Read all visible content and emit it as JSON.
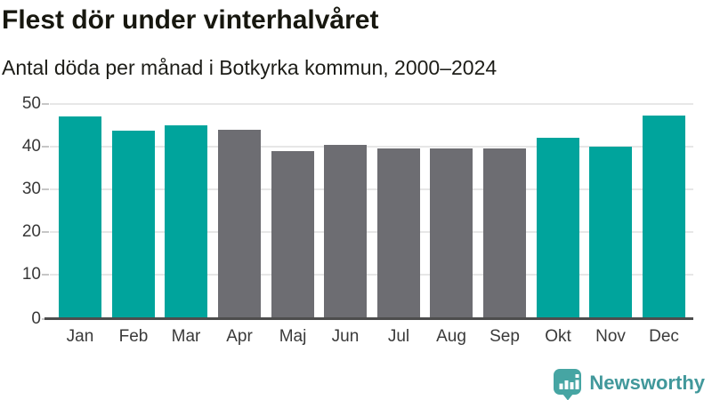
{
  "chart_data": {
    "type": "bar",
    "title": "Flest dör under vinterhalvåret",
    "subtitle": "Antal döda per månad i Botkyrka kommun, 2000–2024",
    "categories": [
      "Jan",
      "Feb",
      "Mar",
      "Apr",
      "Maj",
      "Jun",
      "Jul",
      "Aug",
      "Sep",
      "Okt",
      "Nov",
      "Dec"
    ],
    "values": [
      46.9,
      43.6,
      45.0,
      43.8,
      38.8,
      40.3,
      39.6,
      39.4,
      39.4,
      41.9,
      39.9,
      47.1
    ],
    "highlighted_categories": [
      "Jan",
      "Feb",
      "Mar",
      "Okt",
      "Nov",
      "Dec"
    ],
    "xlabel": "",
    "ylabel": "",
    "ylim": [
      0,
      50
    ],
    "yticks": [
      0,
      10,
      20,
      30,
      40,
      50
    ],
    "grid": true,
    "legend": false,
    "colors": {
      "highlight": "#00a49c",
      "base": "#6d6d72",
      "gridline": "#e7e7e7",
      "axis": "#4d4d4d",
      "axis_label": "#3a3a3a"
    }
  },
  "footer": {
    "brand": "Newsworthy",
    "brand_color": "#41989b",
    "logo_icon": "bar-chart-speech-bubble-icon",
    "logo_color": "#46a5a3"
  }
}
